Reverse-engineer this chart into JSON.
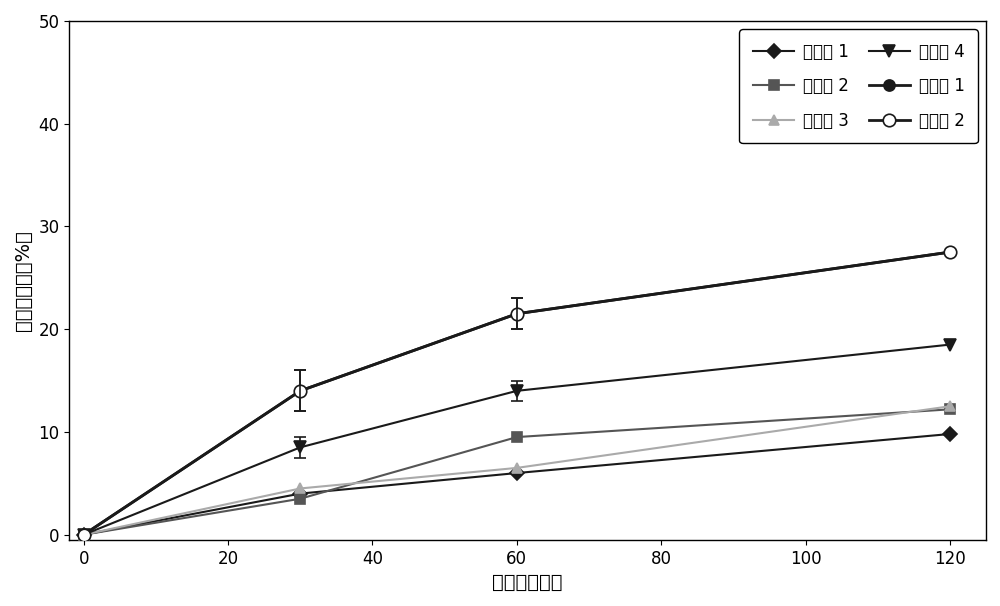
{
  "x": [
    0,
    30,
    60,
    120
  ],
  "series_order": [
    "实施例 1",
    "实施例 2",
    "实施例 3",
    "实施例 4",
    "比较例 1",
    "比较例 2"
  ],
  "series": {
    "实施例 1": {
      "y": [
        0,
        4.0,
        6.0,
        9.8
      ],
      "yerr": [
        0,
        0,
        0,
        0
      ],
      "color": "#1a1a1a",
      "marker": "D",
      "markersize": 7,
      "markerfacecolor": "#1a1a1a",
      "markeredgecolor": "#1a1a1a",
      "linewidth": 1.5,
      "zorder": 3
    },
    "实施例 2": {
      "y": [
        0,
        3.5,
        9.5,
        12.2
      ],
      "yerr": [
        0,
        0,
        0,
        0
      ],
      "color": "#555555",
      "marker": "s",
      "markersize": 7,
      "markerfacecolor": "#555555",
      "markeredgecolor": "#555555",
      "linewidth": 1.5,
      "zorder": 3
    },
    "实施例 3": {
      "y": [
        0,
        4.5,
        6.5,
        12.5
      ],
      "yerr": [
        0,
        0,
        0,
        0
      ],
      "color": "#aaaaaa",
      "marker": "^",
      "markersize": 7,
      "markerfacecolor": "#aaaaaa",
      "markeredgecolor": "#aaaaaa",
      "linewidth": 1.5,
      "zorder": 3
    },
    "实施例 4": {
      "y": [
        0,
        8.5,
        14.0,
        18.5
      ],
      "yerr": [
        0,
        1.0,
        1.0,
        0
      ],
      "color": "#1a1a1a",
      "marker": "v",
      "markersize": 8,
      "markerfacecolor": "#1a1a1a",
      "markeredgecolor": "#1a1a1a",
      "linewidth": 1.5,
      "zorder": 3
    },
    "比较例 1": {
      "y": [
        0,
        14.0,
        21.5,
        27.5
      ],
      "yerr": [
        0,
        2.0,
        1.5,
        0
      ],
      "color": "#1a1a1a",
      "marker": "o",
      "markersize": 8,
      "markerfacecolor": "#1a1a1a",
      "markeredgecolor": "#1a1a1a",
      "linewidth": 2.0,
      "zorder": 4
    },
    "比较例 2": {
      "y": [
        0,
        14.0,
        21.5,
        27.5
      ],
      "yerr": [
        0,
        2.0,
        1.5,
        0
      ],
      "color": "#1a1a1a",
      "marker": "o",
      "markersize": 9,
      "markerfacecolor": "white",
      "markeredgecolor": "#1a1a1a",
      "linewidth": 2.0,
      "zorder": 5
    }
  },
  "xlabel": "时间（分钟）",
  "ylabel": "药物溶出量（%）",
  "xlim": [
    -2,
    125
  ],
  "ylim": [
    -0.5,
    50
  ],
  "xticks": [
    0,
    20,
    40,
    60,
    80,
    100,
    120
  ],
  "yticks": [
    0,
    10,
    20,
    30,
    40,
    50
  ],
  "legend_fontsize": 12,
  "axis_fontsize": 14,
  "tick_fontsize": 12,
  "background_color": "#ffffff",
  "figsize": [
    10.0,
    6.06
  ],
  "dpi": 100
}
